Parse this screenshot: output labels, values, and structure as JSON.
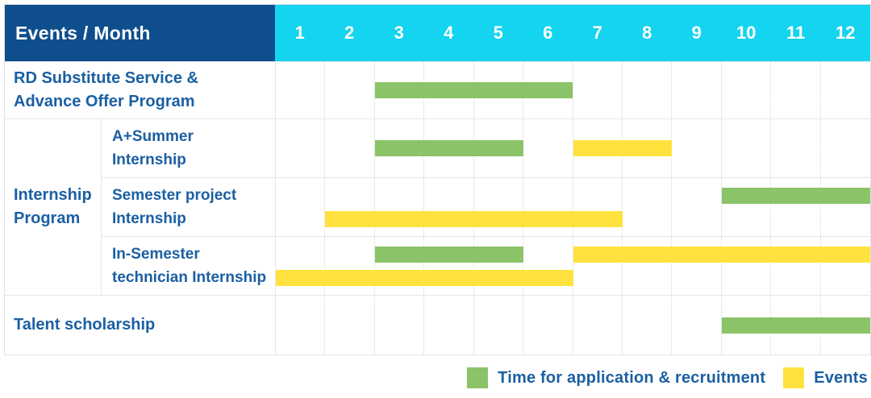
{
  "header": {
    "title": "Events / Month",
    "months": [
      "1",
      "2",
      "3",
      "4",
      "5",
      "6",
      "7",
      "8",
      "9",
      "10",
      "11",
      "12"
    ]
  },
  "group": {
    "label_lines": [
      "Internship",
      "Program"
    ]
  },
  "rows": [
    {
      "in_group": false,
      "label_lines": [
        "RD Substitute Service &",
        "Advance Offer Program"
      ],
      "tracks": [
        [
          {
            "type": "application",
            "start": 3,
            "end": 6
          }
        ]
      ]
    },
    {
      "in_group": true,
      "label_lines": [
        "A+Summer",
        "Internship"
      ],
      "tracks": [
        [
          {
            "type": "application",
            "start": 3,
            "end": 5
          },
          {
            "type": "event",
            "start": 7,
            "end": 8
          }
        ]
      ]
    },
    {
      "in_group": true,
      "label_lines": [
        "Semester project",
        "Internship"
      ],
      "tracks": [
        [
          {
            "type": "application",
            "start": 10,
            "end": 12
          }
        ],
        [
          {
            "type": "event",
            "start": 2,
            "end": 7
          }
        ]
      ]
    },
    {
      "in_group": true,
      "label_lines": [
        "In-Semester",
        "technician Internship"
      ],
      "tracks": [
        [
          {
            "type": "application",
            "start": 3,
            "end": 5
          },
          {
            "type": "event",
            "start": 7,
            "end": 12
          }
        ],
        [
          {
            "type": "event",
            "start": 1,
            "end": 6
          }
        ]
      ]
    },
    {
      "in_group": false,
      "label_lines": [
        "Talent scholarship"
      ],
      "tracks": [
        [
          {
            "type": "application",
            "start": 10,
            "end": 12
          }
        ]
      ]
    }
  ],
  "legend": [
    {
      "type": "application",
      "label": "Time for application & recruitment"
    },
    {
      "type": "event",
      "label": "Events"
    }
  ],
  "colors": {
    "header_bg": "#0e4e8c",
    "months_bg": "#14d4ef",
    "label_text": "#1b5fa3",
    "application": "#8ac368",
    "event": "#ffe23e"
  },
  "chart_data": {
    "type": "bar",
    "subtype": "gantt",
    "title": "Events / Month",
    "xlabel": "Month",
    "x_ticks": [
      1,
      2,
      3,
      4,
      5,
      6,
      7,
      8,
      9,
      10,
      11,
      12
    ],
    "x_range": [
      1,
      12
    ],
    "grid": true,
    "legend_position": "bottom-right",
    "series_legend": [
      "Time for application & recruitment",
      "Events"
    ],
    "rows": [
      {
        "category": "RD Substitute Service & Advance Offer Program",
        "bars": [
          {
            "series": "Time for application & recruitment",
            "start_month": 3,
            "end_month": 6
          }
        ]
      },
      {
        "category": "Internship Program - A+Summer Internship",
        "bars": [
          {
            "series": "Time for application & recruitment",
            "start_month": 3,
            "end_month": 5
          },
          {
            "series": "Events",
            "start_month": 7,
            "end_month": 8
          }
        ]
      },
      {
        "category": "Internship Program - Semester project Internship",
        "bars": [
          {
            "series": "Time for application & recruitment",
            "start_month": 10,
            "end_month": 12
          },
          {
            "series": "Events",
            "start_month": 2,
            "end_month": 7
          }
        ]
      },
      {
        "category": "Internship Program - In-Semester technician Internship",
        "bars": [
          {
            "series": "Time for application & recruitment",
            "start_month": 3,
            "end_month": 5
          },
          {
            "series": "Events",
            "start_month": 7,
            "end_month": 12
          },
          {
            "series": "Events",
            "start_month": 1,
            "end_month": 6
          }
        ]
      },
      {
        "category": "Talent scholarship",
        "bars": [
          {
            "series": "Time for application & recruitment",
            "start_month": 10,
            "end_month": 12
          }
        ]
      }
    ],
    "notes": "Bar ranges are inclusive month spans on a 1-12 month axis"
  }
}
